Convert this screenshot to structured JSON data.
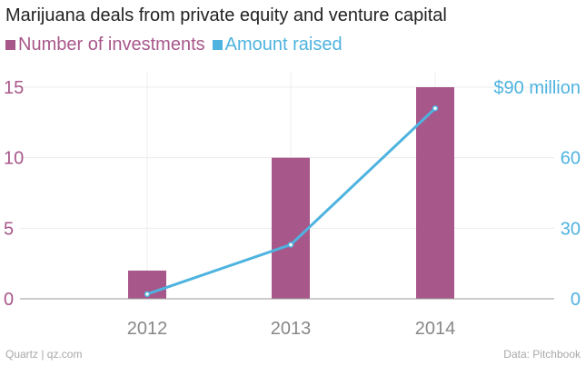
{
  "title": "Marijuana deals from private equity and venture capital",
  "legend": [
    {
      "label": "Number of investments",
      "color": "#a8578a"
    },
    {
      "label": "Amount raised",
      "color": "#4eb3df"
    }
  ],
  "footer": {
    "source_left": "Quartz | qz.com",
    "source_right": "Data: Pitchbook"
  },
  "chart_data": {
    "type": "bar+line",
    "categories": [
      "2012",
      "2013",
      "2014"
    ],
    "series": [
      {
        "name": "Number of investments",
        "type": "bar",
        "axis": "left",
        "values": [
          2,
          10,
          15
        ],
        "color": "#a8578a"
      },
      {
        "name": "Amount raised",
        "type": "line",
        "axis": "right",
        "values": [
          2,
          23,
          81
        ],
        "color": "#4eb3df"
      }
    ],
    "y_left": {
      "ticks": [
        "0",
        "5",
        "10",
        "15"
      ],
      "tick_values": [
        0,
        5,
        10,
        15
      ],
      "range": [
        0,
        15
      ],
      "color": "#a8578a"
    },
    "y_right": {
      "ticks": [
        "0",
        "30",
        "60",
        "$90 million"
      ],
      "tick_values": [
        0,
        30,
        60,
        90
      ],
      "range": [
        0,
        90
      ],
      "color": "#4eb3df"
    },
    "grid": true
  }
}
